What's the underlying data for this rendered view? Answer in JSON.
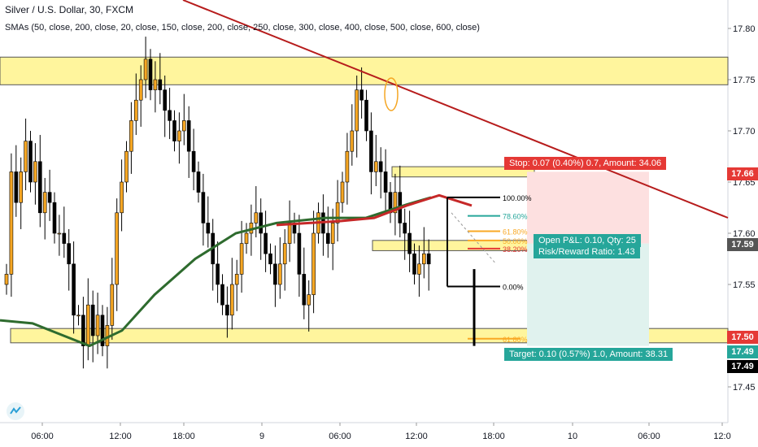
{
  "header": {
    "title": "Silver / U.S. Dollar, 30, FXCM",
    "indicators": "SMAs (50, close, 200, close, 20, close, 150, close, 200, close, 250, close, 300, close, 400, close, 500, close, 600, close)"
  },
  "price_axis": {
    "ticks": [
      "17.80",
      "17.75",
      "17.70",
      "17.65",
      "17.60",
      "17.55",
      "17.50",
      "17.45"
    ],
    "tags": [
      {
        "label": "17.66",
        "color": "#e53935"
      },
      {
        "label": "17.59",
        "color": "#555555"
      },
      {
        "label": "17.50",
        "color": "#e53935"
      },
      {
        "label": "17.49",
        "color": "#26a69a"
      },
      {
        "label": "17.49",
        "color": "#000000"
      }
    ]
  },
  "time_axis": {
    "ticks": [
      "06:00",
      "12:00",
      "18:00",
      "9",
      "06:00",
      "12:00",
      "18:00",
      "10",
      "06:00",
      "12:0"
    ]
  },
  "position": {
    "stop_text": "Stop: 0.07 (0.40%) 0.7, Amount: 34.06",
    "pnl_text": "Open P&L: 0.10, Qty: 25",
    "rr_text": "Risk/Reward Ratio: 1.43",
    "target_text": "Target: 0.10 (0.57%) 1.0, Amount: 38.31"
  },
  "fibonacci": {
    "levels": [
      {
        "label": "100.00%",
        "color": "#000000"
      },
      {
        "label": "78.60%",
        "color": "#26a69a"
      },
      {
        "label": "61.80%",
        "color": "#f9a825"
      },
      {
        "label": "50.00%",
        "color": "#f9a825"
      },
      {
        "label": "38.20%",
        "color": "#e53935"
      },
      {
        "label": "0.00%",
        "color": "#000000"
      },
      {
        "label": "61.80%",
        "color": "#f9a825"
      }
    ]
  },
  "colors": {
    "candle": "#f5a623",
    "sma_red": "#c62828",
    "sma_green": "#2e6b2e",
    "trendline": "#b71c1c",
    "zone": "#fff59d",
    "stop_fill": "#fde0e0",
    "target_fill": "#e0f2ee"
  },
  "chart_data": {
    "type": "candlestick",
    "symbol": "Silver / U.S. Dollar",
    "interval": "30",
    "ylim": [
      17.43,
      17.83
    ],
    "close_series": [
      17.56,
      17.66,
      17.63,
      17.66,
      17.69,
      17.65,
      17.67,
      17.62,
      17.64,
      17.63,
      17.6,
      17.6,
      17.59,
      17.57,
      17.52,
      17.52,
      17.49,
      17.53,
      17.5,
      17.52,
      17.49,
      17.51,
      17.55,
      17.62,
      17.65,
      17.68,
      17.71,
      17.73,
      17.75,
      17.77,
      17.74,
      17.75,
      17.74,
      17.72,
      17.71,
      17.69,
      17.7,
      17.71,
      17.68,
      17.66,
      17.64,
      17.61,
      17.6,
      17.57,
      17.55,
      17.53,
      17.52,
      17.55,
      17.56,
      17.59,
      17.6,
      17.61,
      17.62,
      17.6,
      17.58,
      17.57,
      17.55,
      17.57,
      17.59,
      17.61,
      17.6,
      17.56,
      17.53,
      17.54,
      17.6,
      17.62,
      17.6,
      17.59,
      17.61,
      17.63,
      17.65,
      17.68,
      17.7,
      17.74,
      17.73,
      17.7,
      17.66,
      17.67,
      17.66,
      17.64,
      17.62,
      17.64,
      17.61,
      17.6,
      17.58,
      17.56,
      17.57,
      17.58,
      17.57
    ],
    "sma_red_end": 17.63,
    "sma_green_end": 17.63
  }
}
